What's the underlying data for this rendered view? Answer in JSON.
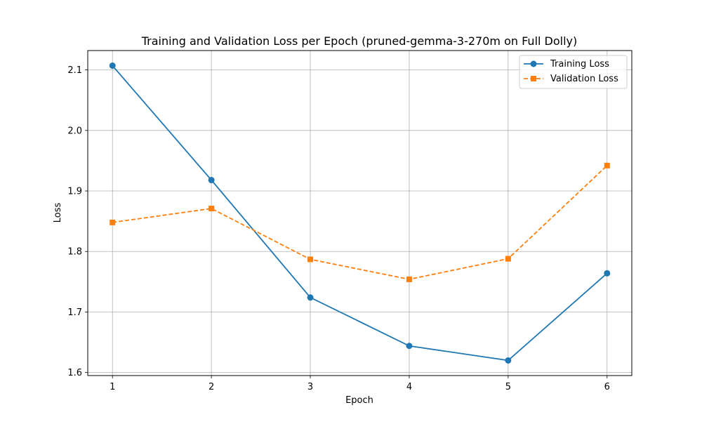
{
  "chart_data": {
    "type": "line",
    "title": "Training and Validation Loss per Epoch (pruned-gemma-3-270m on Full Dolly)",
    "xlabel": "Epoch",
    "ylabel": "Loss",
    "x": [
      1,
      2,
      3,
      4,
      5,
      6
    ],
    "xticks": [
      "1",
      "2",
      "3",
      "4",
      "5",
      "6"
    ],
    "yticks": [
      "1.6",
      "1.7",
      "1.8",
      "1.9",
      "2.0",
      "2.1"
    ],
    "xlim": [
      0.75,
      6.25
    ],
    "ylim": [
      1.595,
      2.132
    ],
    "grid": true,
    "legend_position": "top-right",
    "series": [
      {
        "name": "Training Loss",
        "values": [
          2.107,
          1.918,
          1.724,
          1.644,
          1.62,
          1.764
        ],
        "color": "#1f77b4",
        "marker": "circle",
        "line_style": "solid"
      },
      {
        "name": "Validation Loss",
        "values": [
          1.848,
          1.871,
          1.787,
          1.754,
          1.788,
          1.942
        ],
        "color": "#ff7f0e",
        "marker": "square",
        "line_style": "dashed"
      }
    ]
  }
}
